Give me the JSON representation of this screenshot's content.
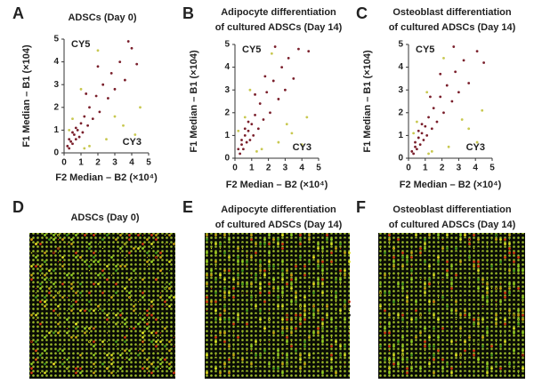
{
  "chart_data": [
    {
      "type": "scatter",
      "letter": "A",
      "title": [
        "ADSCs (Day 0)"
      ],
      "xlabel": "F2 Median – B2 (×10⁴)",
      "ylabel": "F1 Median – B1 (×104)",
      "annotations": [
        "CY5",
        "CY3"
      ],
      "xlim": [
        0,
        5
      ],
      "ylim": [
        0,
        5
      ],
      "xticks": [
        0,
        1,
        2,
        3,
        4,
        5
      ],
      "yticks": [
        0,
        1,
        2,
        3,
        4,
        5
      ],
      "series": [
        {
          "color": "#7a1f2b",
          "x": [
            0.2,
            0.3,
            0.4,
            0.5,
            0.6,
            0.7,
            0.8,
            0.9,
            1.0,
            1.1,
            1.2,
            1.4,
            1.5,
            1.7,
            1.9,
            2.1,
            2.3,
            2.6,
            2.8,
            3.0,
            3.3,
            3.6,
            4.0,
            4.3,
            2.0,
            1.3,
            3.8,
            0.3,
            0.5,
            0.7
          ],
          "y": [
            0.3,
            0.2,
            0.5,
            0.4,
            0.8,
            0.6,
            1.0,
            0.7,
            1.3,
            0.9,
            1.6,
            1.2,
            2.0,
            1.5,
            2.5,
            1.8,
            3.0,
            2.4,
            3.5,
            2.8,
            4.0,
            3.2,
            4.6,
            3.9,
            3.8,
            2.6,
            4.9,
            0.6,
            0.9,
            1.1
          ]
        },
        {
          "color": "#c8c850",
          "x": [
            0.5,
            1.5,
            2.5,
            3.5,
            1.0,
            4.5,
            0.3,
            2.0,
            4.2,
            1.2,
            3.0
          ],
          "y": [
            1.5,
            0.3,
            0.6,
            1.2,
            2.8,
            2.0,
            1.0,
            4.5,
            0.8,
            0.2,
            1.6
          ]
        }
      ]
    },
    {
      "type": "scatter",
      "letter": "B",
      "title": [
        "Adipocyte differentiation",
        "of cultured ADSCs (Day 14)"
      ],
      "xlabel": "F2 Median – B2 (×10⁴)",
      "ylabel": "F1 Median – B1 (×104)",
      "annotations": [
        "CY5",
        "CY3"
      ],
      "xlim": [
        0,
        5
      ],
      "ylim": [
        0,
        5
      ],
      "xticks": [
        0,
        1,
        2,
        3,
        4,
        5
      ],
      "yticks": [
        0,
        1,
        2,
        3,
        4,
        5
      ],
      "series": [
        {
          "color": "#7a1f2b",
          "x": [
            0.2,
            0.3,
            0.4,
            0.5,
            0.6,
            0.7,
            0.8,
            0.9,
            1.0,
            1.1,
            1.2,
            1.4,
            1.5,
            1.7,
            1.9,
            2.1,
            2.3,
            2.6,
            2.8,
            3.0,
            3.2,
            3.5,
            3.8,
            4.4,
            1.8,
            1.2,
            2.4,
            0.4,
            0.6,
            0.8
          ],
          "y": [
            0.4,
            0.2,
            0.6,
            0.4,
            1.0,
            0.7,
            1.2,
            0.8,
            1.5,
            1.0,
            1.9,
            1.3,
            2.4,
            1.7,
            2.9,
            2.0,
            3.4,
            2.6,
            4.0,
            3.0,
            4.4,
            3.5,
            4.8,
            4.7,
            3.6,
            2.8,
            4.9,
            0.8,
            1.3,
            1.6
          ]
        },
        {
          "color": "#c8c850",
          "x": [
            0.6,
            1.6,
            2.6,
            3.4,
            0.9,
            4.3,
            0.2,
            2.2,
            4.0,
            1.3,
            3.1
          ],
          "y": [
            1.8,
            0.4,
            0.7,
            1.1,
            3.0,
            1.8,
            1.2,
            4.6,
            0.6,
            0.3,
            1.5
          ]
        }
      ]
    },
    {
      "type": "scatter",
      "letter": "C",
      "title": [
        "Osteoblast differentiation",
        "of cultured ADSCs (Day 14)"
      ],
      "xlabel": "F2 Median – B2 (×10⁴)",
      "ylabel": "F1 Median – B1 (×104)",
      "annotations": [
        "CY5",
        "CY3"
      ],
      "xlim": [
        0,
        5
      ],
      "ylim": [
        0,
        5
      ],
      "xticks": [
        0,
        1,
        2,
        3,
        4,
        5
      ],
      "yticks": [
        0,
        1,
        2,
        3,
        4,
        5
      ],
      "series": [
        {
          "color": "#7a1f2b",
          "x": [
            0.2,
            0.3,
            0.4,
            0.5,
            0.6,
            0.7,
            0.8,
            0.9,
            1.0,
            1.1,
            1.2,
            1.4,
            1.5,
            1.7,
            1.9,
            2.1,
            2.3,
            2.6,
            2.8,
            3.0,
            3.3,
            3.6,
            4.1,
            4.5,
            1.9,
            1.3,
            2.7,
            0.4,
            0.6,
            0.8
          ],
          "y": [
            0.3,
            0.2,
            0.5,
            0.4,
            0.9,
            0.6,
            1.1,
            0.8,
            1.4,
            1.0,
            1.8,
            1.3,
            2.2,
            1.6,
            2.7,
            2.0,
            3.2,
            2.5,
            3.8,
            2.9,
            4.3,
            3.3,
            4.7,
            4.2,
            3.7,
            2.7,
            4.9,
            0.7,
            1.2,
            1.5
          ]
        },
        {
          "color": "#c8c850",
          "x": [
            0.5,
            1.4,
            2.4,
            3.6,
            1.1,
            4.4,
            0.3,
            2.1,
            4.1,
            1.2,
            3.2
          ],
          "y": [
            1.6,
            0.3,
            0.5,
            1.3,
            2.9,
            2.1,
            1.1,
            4.4,
            0.7,
            0.2,
            1.7
          ]
        }
      ]
    }
  ],
  "images": [
    {
      "letter": "D",
      "title": [
        "ADSCs (Day 0)"
      ]
    },
    {
      "letter": "E",
      "title": [
        "Adipocyte differentiation",
        "of cultured ADSCs (Day 14)"
      ]
    },
    {
      "letter": "F",
      "title": [
        "Osteoblast differentiation",
        "of cultured ADSCs (Day 14)"
      ]
    }
  ]
}
